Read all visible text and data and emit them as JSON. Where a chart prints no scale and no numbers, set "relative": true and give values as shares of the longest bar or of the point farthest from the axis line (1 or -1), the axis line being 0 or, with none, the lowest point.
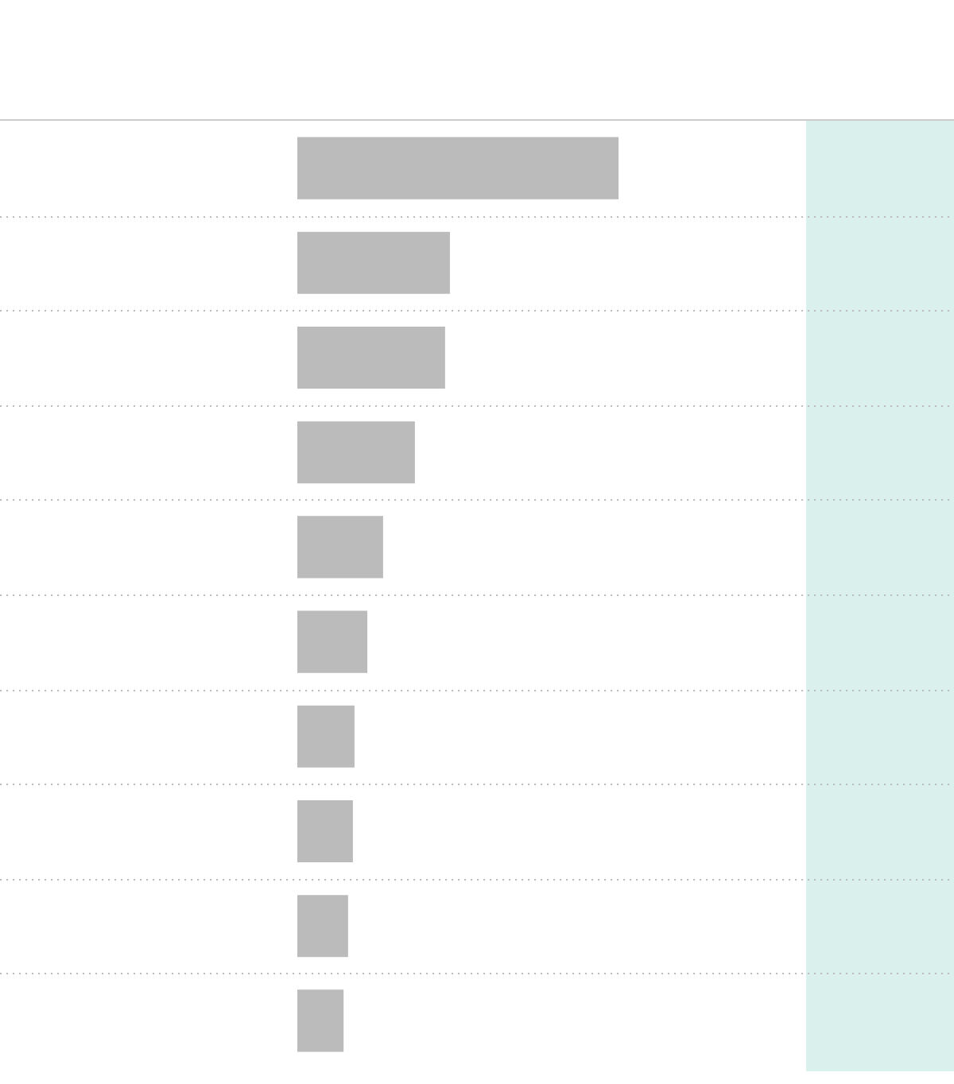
{
  "chart_data": {
    "type": "bar",
    "orientation": "horizontal",
    "relative": true,
    "grid": "y",
    "legend": false,
    "categories": [
      null,
      null,
      null,
      null,
      null,
      null,
      null,
      null,
      null,
      null
    ],
    "values": [
      1,
      0.475,
      0.46,
      0.366,
      0.267,
      0.218,
      0.178,
      0.173,
      0.158,
      0.144
    ],
    "color": "#bbbbbb"
  }
}
